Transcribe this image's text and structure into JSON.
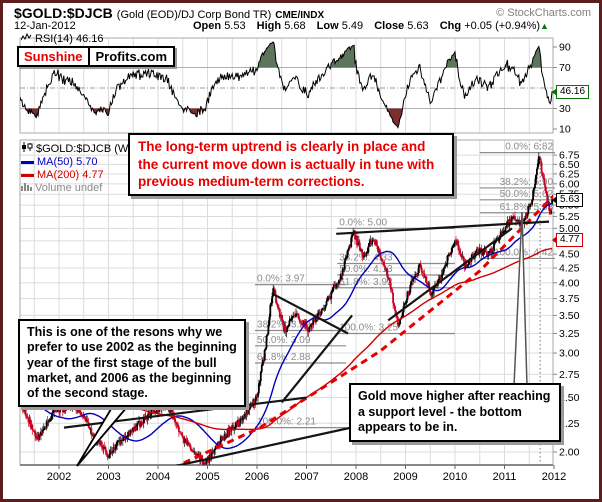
{
  "header": {
    "symbol": "$GOLD:$DJCB",
    "description": "(Gold (EOD)/DJ Corp Bond TR)",
    "exchange": "CME/INDX",
    "copyright": "© StockCharts.com",
    "date": "12-Jan-2012",
    "quote": {
      "open_label": "Open",
      "open": "5.53",
      "high_label": "High",
      "high": "5.68",
      "low_label": "Low",
      "low": "5.49",
      "close_label": "Close",
      "close": "5.63",
      "chg_label": "Chg",
      "chg": "+0.05 (+0.94%)",
      "chg_arrow": "▲"
    }
  },
  "logo": {
    "part1": "Sunshine",
    "part2": "Profits.com"
  },
  "rsi_panel": {
    "label": "RSI(14) 46.16",
    "value_box": "46.16",
    "axis_ticks": [
      90,
      70,
      30,
      10
    ],
    "gridlines_solid": [
      70,
      30
    ],
    "gridline_dashdot": 50
  },
  "main_panel": {
    "legend": {
      "series": "$GOLD:$DJCB (W",
      "ma50": "MA(50) 5.70",
      "ma200": "MA(200) 4.77",
      "volume": "Volume undef"
    },
    "close_box": "5.63",
    "ma200_box": "4.77",
    "price_ticks": [
      2.0,
      2.25,
      2.5,
      2.75,
      3.0,
      3.25,
      3.5,
      3.75,
      4.0,
      4.25,
      4.5,
      4.75,
      5.0,
      5.25,
      5.5,
      5.75,
      6.0,
      6.25,
      6.5,
      6.75
    ],
    "years": [
      2002,
      2003,
      2004,
      2005,
      2006,
      2007,
      2008,
      2009,
      2010,
      2011,
      2012
    ]
  },
  "annotations": {
    "uptrend_note": "The long-term uptrend is clearly in place and the current move down is actually in tune with previous medium-term corrections.",
    "reasons_note": "This is one of the resons why we prefer to use 2002 as the beginning year of the first stage of the bull market, and 2006 as the beginning of the second stage.",
    "support_note": "Gold move higher after reaching a support level - the bottom appears to be in."
  },
  "colors": {
    "frame": "#5e1d1d",
    "grid": "#dcdcdc",
    "panel_border": "#aaaaaa",
    "candle_up": "#000000",
    "candle_down": "#cc0022",
    "ma50": "#0000bb",
    "ma200": "#cc0000",
    "support_dashed": "#e80000",
    "trendline": "#151515",
    "fib": "#8c8c8c",
    "rsi_line": "#000000",
    "rsi_over_fill": "#5c755c",
    "rsi_under_fill": "#7a2e2e",
    "arrow_up": "#007a00"
  },
  "chart_data": {
    "type": "candlestick",
    "timeframe": "weekly",
    "title": "$GOLD:$DJCB ratio with RSI(14), MA(50), MA(200)",
    "x_range": [
      2001.2,
      2012.05
    ],
    "y_scale": "log",
    "y_range": [
      1.85,
      6.9
    ],
    "key_values": {
      "open": 5.53,
      "high": 5.68,
      "low": 5.49,
      "close": 5.63,
      "change": 0.05,
      "change_pct": 0.94,
      "ma50": 5.7,
      "ma200": 4.77,
      "rsi14": 46.16,
      "all_time_high": 6.82
    },
    "price_path_anchors": [
      [
        1997.0,
        3.45
      ],
      [
        1998.0,
        3.22
      ],
      [
        1999.0,
        3.0
      ],
      [
        2000.0,
        2.8
      ],
      [
        2000.7,
        2.6
      ],
      [
        2001.2,
        2.48
      ],
      [
        2001.55,
        2.1
      ],
      [
        2001.9,
        2.36
      ],
      [
        2002.3,
        2.44
      ],
      [
        2002.75,
        2.1
      ],
      [
        2003.0,
        1.98
      ],
      [
        2003.3,
        2.12
      ],
      [
        2003.9,
        2.36
      ],
      [
        2004.2,
        2.42
      ],
      [
        2004.5,
        2.12
      ],
      [
        2004.95,
        1.9
      ],
      [
        2005.3,
        2.12
      ],
      [
        2005.7,
        2.28
      ],
      [
        2006.0,
        2.5
      ],
      [
        2006.18,
        3.1
      ],
      [
        2006.32,
        3.9
      ],
      [
        2006.55,
        3.3
      ],
      [
        2006.8,
        3.5
      ],
      [
        2007.05,
        3.3
      ],
      [
        2007.35,
        3.62
      ],
      [
        2007.7,
        4.1
      ],
      [
        2007.95,
        4.9
      ],
      [
        2008.15,
        4.45
      ],
      [
        2008.35,
        4.8
      ],
      [
        2008.6,
        4.25
      ],
      [
        2008.85,
        3.35
      ],
      [
        2009.1,
        3.95
      ],
      [
        2009.3,
        4.3
      ],
      [
        2009.5,
        3.85
      ],
      [
        2009.75,
        4.15
      ],
      [
        2010.0,
        4.8
      ],
      [
        2010.2,
        4.3
      ],
      [
        2010.45,
        4.55
      ],
      [
        2010.7,
        4.5
      ],
      [
        2010.95,
        4.95
      ],
      [
        2011.15,
        5.2
      ],
      [
        2011.35,
        5.05
      ],
      [
        2011.55,
        5.6
      ],
      [
        2011.7,
        6.7
      ],
      [
        2011.78,
        6.1
      ],
      [
        2011.87,
        5.6
      ],
      [
        2011.93,
        5.3
      ],
      [
        2011.97,
        5.63
      ]
    ],
    "fib_sets": [
      {
        "x_start": 2005.96,
        "x_end": 2007.8,
        "label_align": "left",
        "levels": [
          [
            "0.0%",
            3.97
          ],
          [
            "38.2%",
            3.29
          ],
          [
            "50.0%",
            3.09
          ],
          [
            "61.8%",
            2.88
          ],
          [
            "100.0%",
            2.21
          ]
        ]
      },
      {
        "x_start": 2007.62,
        "x_end": 2010.0,
        "label_align": "left",
        "levels": [
          [
            "0.0%",
            5.0
          ],
          [
            "38.2%",
            4.33
          ],
          [
            "50.0%",
            4.13
          ],
          [
            "61.8%",
            3.92
          ],
          [
            "100.0%",
            3.25
          ]
        ]
      },
      {
        "x_start": 2010.5,
        "x_end": 2012.02,
        "label_align": "right",
        "levels": [
          [
            "0.0%",
            6.82
          ],
          [
            "38.2%",
            5.9
          ],
          [
            "50.0%",
            5.62
          ],
          [
            "61.8%",
            5.33
          ],
          [
            "100.0%",
            4.42
          ]
        ]
      }
    ],
    "trendlines": [
      [
        2002.1,
        2.21,
        2007.0,
        2.5
      ],
      [
        2003.4,
        1.81,
        2007.9,
        2.21
      ],
      [
        2006.3,
        3.83,
        2007.84,
        3.25
      ],
      [
        2006.5,
        2.45,
        2007.92,
        3.5
      ],
      [
        2007.6,
        4.89,
        2011.9,
        5.14
      ],
      [
        2008.65,
        3.43,
        2011.15,
        5.0
      ]
    ],
    "support_dashed_line": [
      [
        2003.64,
        1.76
      ],
      [
        2006.06,
        2.21
      ],
      [
        2008.48,
        3.02
      ],
      [
        2010.5,
        4.2
      ],
      [
        2012.04,
        5.77
      ]
    ],
    "dotted_vline_t": 2011.72,
    "peak_fixes": [
      [
        2011.7,
        6.82
      ],
      [
        2006.32,
        3.97
      ],
      [
        2007.95,
        5.0
      ]
    ],
    "last_candle": {
      "open": 5.53,
      "high": 5.68,
      "low": 5.49,
      "close": 5.63
    }
  }
}
